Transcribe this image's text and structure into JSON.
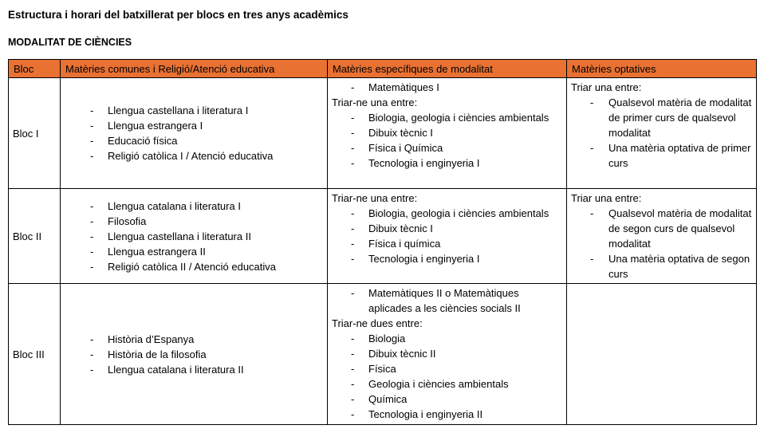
{
  "page": {
    "title": "Estructura i horari del batxillerat per blocs en tres anys acadèmics",
    "subtitle": "MODALITAT DE CIÈNCIES"
  },
  "table": {
    "header_bg": "#E97132",
    "border_color": "#000000",
    "headers": [
      "Bloc",
      "Matèries comunes i Religió/Atenció educativa",
      "Matèries específiques de modalitat",
      "Matèries optatives"
    ],
    "rows": [
      {
        "bloc": "Bloc I",
        "comunes": [
          {
            "type": "list",
            "items": [
              "Llengua castellana i literatura I",
              "Llengua estrangera I",
              "Educació física",
              "Religió catòlica I / Atenció educativa"
            ]
          }
        ],
        "especifiques": [
          {
            "type": "list",
            "items": [
              "Matemàtiques I"
            ]
          },
          {
            "type": "text",
            "content": "Triar-ne una entre:"
          },
          {
            "type": "list",
            "items": [
              "Biologia, geologia i ciències ambientals",
              "Dibuix tècnic I",
              "Física i Química",
              "Tecnologia i enginyeria I"
            ]
          }
        ],
        "optatives": [
          {
            "type": "text",
            "content": "Triar una entre:"
          },
          {
            "type": "list",
            "items": [
              "Qualsevol matèria de modalitat de primer curs de qualsevol modalitat",
              "Una matèria optativa de primer curs"
            ]
          }
        ]
      },
      {
        "bloc": "Bloc II",
        "comunes": [
          {
            "type": "list",
            "items": [
              "Llengua catalana i literatura I",
              "Filosofia",
              "Llengua castellana i literatura II",
              "Llengua estrangera II",
              "Religió catòlica II / Atenció educativa"
            ]
          }
        ],
        "especifiques": [
          {
            "type": "text",
            "content": "Triar-ne una entre:"
          },
          {
            "type": "list",
            "items": [
              "Biologia, geologia i ciències ambientals",
              "Dibuix tècnic I",
              "Física i química",
              "Tecnologia i enginyeria I"
            ]
          }
        ],
        "optatives": [
          {
            "type": "text",
            "content": "Triar una entre:"
          },
          {
            "type": "list",
            "items": [
              "Qualsevol matèria de modalitat de segon curs de qualsevol modalitat",
              "Una matèria optativa de segon curs"
            ]
          }
        ]
      },
      {
        "bloc": "Bloc III",
        "comunes": [
          {
            "type": "list",
            "items": [
              "Història d’Espanya",
              "Història de la filosofia",
              "Llengua catalana i literatura II"
            ]
          }
        ],
        "especifiques": [
          {
            "type": "list",
            "items": [
              "Matemàtiques II o Matemàtiques aplicades a les ciències socials II"
            ]
          },
          {
            "type": "text",
            "content": "Triar-ne dues entre:"
          },
          {
            "type": "list",
            "items": [
              "Biologia",
              "Dibuix tècnic II",
              "Física",
              "Geologia i ciències ambientals",
              "Química",
              "Tecnologia i enginyeria II"
            ]
          }
        ],
        "optatives": []
      }
    ]
  }
}
